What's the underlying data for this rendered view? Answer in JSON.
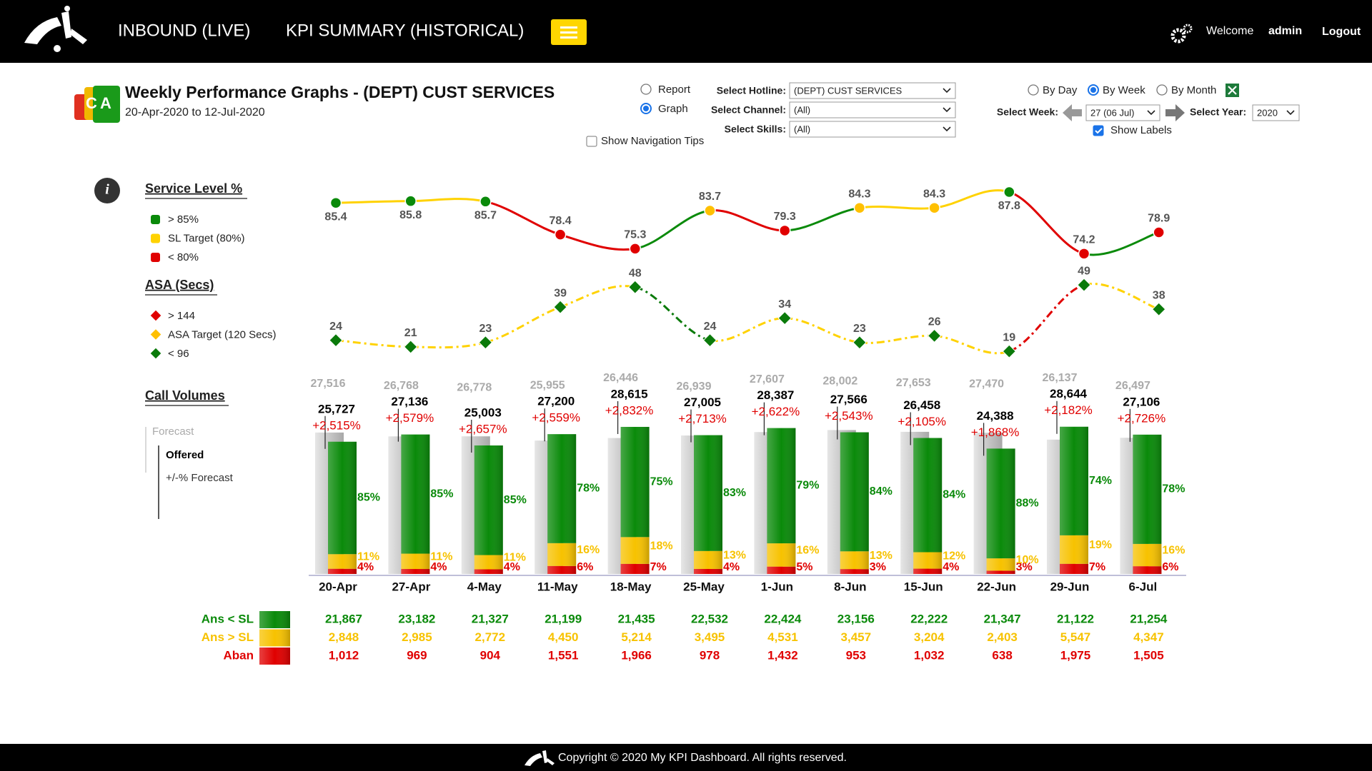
{
  "header": {
    "nav": [
      "INBOUND (LIVE)",
      "KPI SUMMARY (HISTORICAL)"
    ],
    "welcome": "Welcome",
    "user": "admin",
    "logout": "Logout"
  },
  "page": {
    "title": "Weekly Performance Graphs - (DEPT) CUST SERVICES",
    "date_range": "20-Apr-2020 to 12-Jul-2020",
    "view_options": [
      {
        "label": "Report",
        "selected": false
      },
      {
        "label": "Graph",
        "selected": true
      }
    ],
    "navigation_tips": {
      "label": "Show Navigation Tips",
      "checked": false
    },
    "filters": [
      {
        "label": "Select Hotline:",
        "value": "(DEPT) CUST SERVICES"
      },
      {
        "label": "Select Channel:",
        "value": "(All)"
      },
      {
        "label": "Select Skills:",
        "value": "(All)"
      }
    ],
    "period_options": [
      {
        "label": "By Day",
        "selected": false
      },
      {
        "label": "By Week",
        "selected": true
      },
      {
        "label": "By Month",
        "selected": false
      }
    ],
    "week": {
      "label": "Select Week:",
      "value": "27 (06 Jul)"
    },
    "year": {
      "label": "Select Year:",
      "value": "2020"
    },
    "show_labels": {
      "label": "Show Labels",
      "checked": true
    }
  },
  "chart_data": [
    {
      "type": "line",
      "title": "Service Level %",
      "marker": "circle",
      "line_style": "solid",
      "legend": [
        {
          "label": "> 85%",
          "color": "#0a8a0a"
        },
        {
          "label": "SL Target (80%)",
          "color": "#ffd200"
        },
        {
          "label": "< 80%",
          "color": "#e00000"
        }
      ],
      "values": [
        85.4,
        85.8,
        85.7,
        78.4,
        75.3,
        83.7,
        79.3,
        84.3,
        84.3,
        87.8,
        74.2,
        78.9
      ],
      "point_colors": [
        "#0a8a0a",
        "#0a8a0a",
        "#0a8a0a",
        "#e00000",
        "#e00000",
        "#ffc000",
        "#e00000",
        "#ffc000",
        "#ffc000",
        "#0a8a0a",
        "#e00000",
        "#e00000"
      ],
      "segment_colors": [
        "#ffd200",
        "#ffd200",
        "#e00000",
        "#e00000",
        "#0a8a0a",
        "#e00000",
        "#0a8a0a",
        "#ffd200",
        "#ffd200",
        "#e00000",
        "#0a8a0a"
      ],
      "ylim": [
        70,
        90
      ]
    },
    {
      "type": "line",
      "title": "ASA (Secs)",
      "marker": "diamond",
      "line_style": "dash-dot",
      "legend": [
        {
          "label": "> 144",
          "color": "#e00000"
        },
        {
          "label": "ASA Target (120 Secs)",
          "color": "#ffc000"
        },
        {
          "label": "< 96",
          "color": "#0a7a0a"
        }
      ],
      "values": [
        24,
        21,
        23,
        39,
        48,
        24,
        34,
        23,
        26,
        19,
        49,
        38
      ],
      "point_colors": [
        "#0a7a0a",
        "#0a7a0a",
        "#0a7a0a",
        "#0a7a0a",
        "#0a7a0a",
        "#0a7a0a",
        "#0a7a0a",
        "#0a7a0a",
        "#0a7a0a",
        "#0a7a0a",
        "#0a7a0a",
        "#0a7a0a"
      ],
      "segment_colors": [
        "#ffd200",
        "#ffd200",
        "#ffd200",
        "#ffd200",
        "#0a7a0a",
        "#ffd200",
        "#ffd200",
        "#ffd200",
        "#ffd200",
        "#e00000",
        "#ffd200"
      ],
      "ylim": [
        10,
        50
      ]
    },
    {
      "type": "bar",
      "title": "Call Volumes",
      "categories": [
        "20-Apr",
        "27-Apr",
        "4-May",
        "11-May",
        "18-May",
        "25-May",
        "1-Jun",
        "8-Jun",
        "15-Jun",
        "22-Jun",
        "29-Jun",
        "6-Jul"
      ],
      "ylim": [
        0,
        40000
      ],
      "forecast": {
        "name": "Forecast",
        "color": "#b8b8b8",
        "values": [
          27516,
          26768,
          26778,
          25955,
          26446,
          26939,
          27607,
          28002,
          27653,
          27470,
          26137,
          26497
        ],
        "value_labels": [
          "27,516",
          "26,768",
          "26,778",
          "25,955",
          "26,446",
          "26,939",
          "27,607",
          "28,002",
          "27,653",
          "27,470",
          "26,137",
          "26,497"
        ]
      },
      "offered": {
        "name": "Offered",
        "color": "#000000",
        "values": [
          25727,
          27136,
          25003,
          27200,
          28615,
          27005,
          28387,
          27566,
          26458,
          24388,
          28644,
          27106
        ],
        "value_labels": [
          "25,727",
          "27,136",
          "25,003",
          "27,200",
          "28,615",
          "27,005",
          "28,387",
          "27,566",
          "26,458",
          "24,388",
          "28,644",
          "27,106"
        ]
      },
      "diff": {
        "name": "+/-% Forecast",
        "color": "#e00000",
        "labels": [
          "+2,515%",
          "+2,579%",
          "+2,657%",
          "+2,559%",
          "+2,832%",
          "+2,713%",
          "+2,622%",
          "+2,543%",
          "+2,105%",
          "+1,868%",
          "+2,182%",
          "+2,726%"
        ]
      },
      "series": [
        {
          "name": "Ans < SL",
          "color": "#0a8a0a",
          "values": [
            21867,
            23182,
            21327,
            21199,
            21435,
            22532,
            22424,
            23156,
            22222,
            21347,
            21122,
            21254
          ],
          "value_labels": [
            "21,867",
            "23,182",
            "21,327",
            "21,199",
            "21,435",
            "22,532",
            "22,424",
            "23,156",
            "22,222",
            "21,347",
            "21,122",
            "21,254"
          ],
          "percent_labels": [
            "85%",
            "85%",
            "85%",
            "78%",
            "75%",
            "83%",
            "79%",
            "84%",
            "84%",
            "88%",
            "74%",
            "78%"
          ]
        },
        {
          "name": "Ans > SL",
          "color": "#f7c200",
          "values": [
            2848,
            2985,
            2772,
            4450,
            5214,
            3495,
            4531,
            3457,
            3204,
            2403,
            5547,
            4347
          ],
          "value_labels": [
            "2,848",
            "2,985",
            "2,772",
            "4,450",
            "5,214",
            "3,495",
            "4,531",
            "3,457",
            "3,204",
            "2,403",
            "5,547",
            "4,347"
          ],
          "percent_labels": [
            "11%",
            "11%",
            "11%",
            "16%",
            "18%",
            "13%",
            "16%",
            "13%",
            "12%",
            "10%",
            "19%",
            "16%"
          ]
        },
        {
          "name": "Aban",
          "color": "#e00000",
          "values": [
            1012,
            969,
            904,
            1551,
            1966,
            978,
            1432,
            953,
            1032,
            638,
            1975,
            1505
          ],
          "value_labels": [
            "1,012",
            "969",
            "904",
            "1,551",
            "1,966",
            "978",
            "1,432",
            "953",
            "1,032",
            "638",
            "1,975",
            "1,505"
          ],
          "percent_labels": [
            "4%",
            "4%",
            "4%",
            "6%",
            "7%",
            "4%",
            "5%",
            "3%",
            "4%",
            "3%",
            "7%",
            "6%"
          ]
        }
      ]
    }
  ],
  "footer": {
    "copyright": "Copyright © 2020 My KPI Dashboard. All rights reserved."
  }
}
